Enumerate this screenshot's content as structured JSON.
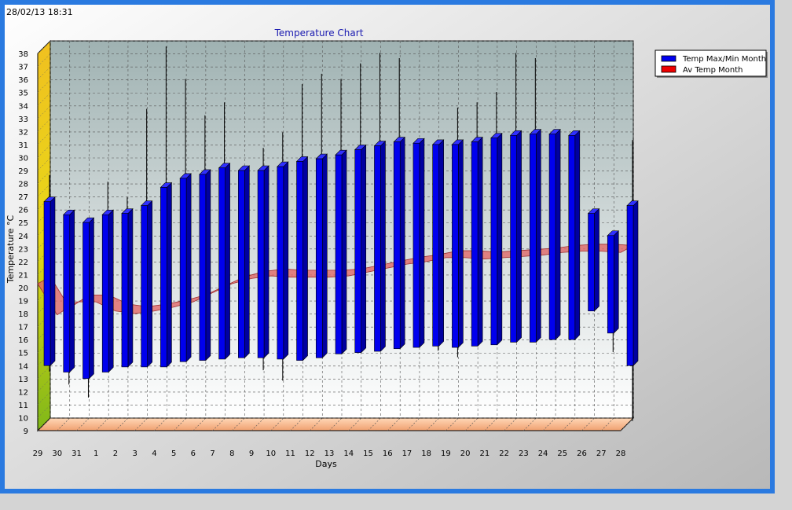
{
  "timestamp": "28/02/13 18:31",
  "chart_data": {
    "type": "candlestick-with-line",
    "title": "Temperature Chart",
    "xlabel": "Days",
    "ylabel": "Temperature °C",
    "ylim": [
      9,
      38
    ],
    "categories": [
      "29",
      "30",
      "31",
      "1",
      "2",
      "3",
      "4",
      "5",
      "6",
      "7",
      "8",
      "9",
      "10",
      "11",
      "12",
      "13",
      "14",
      "15",
      "16",
      "17",
      "18",
      "19",
      "20",
      "21",
      "22",
      "23",
      "24",
      "25",
      "26",
      "27",
      "28"
    ],
    "series": [
      {
        "name": "Temp Max/Min Month",
        "color": "#0000ee",
        "open_high": [
          26.6,
          25.6,
          25.0,
          25.6,
          25.7,
          26.3,
          27.7,
          28.4,
          28.7,
          29.2,
          29.0,
          29.0,
          29.3,
          29.7,
          29.9,
          30.2,
          30.6,
          30.9,
          31.2,
          31.1,
          31.0,
          31.0,
          31.2,
          31.5,
          31.7,
          31.8,
          31.8,
          31.7,
          25.7,
          24.0,
          26.3
        ],
        "close_low": [
          14.0,
          13.5,
          13.0,
          13.5,
          13.9,
          13.9,
          13.9,
          14.3,
          14.4,
          14.5,
          14.6,
          14.6,
          14.5,
          14.4,
          14.6,
          14.9,
          15.0,
          15.1,
          15.3,
          15.4,
          15.5,
          15.4,
          15.5,
          15.6,
          15.8,
          15.8,
          16.0,
          16.0,
          18.2,
          16.5,
          14.0
        ],
        "high": [
          28.4,
          25.6,
          25.0,
          27.9,
          26.7,
          33.5,
          38.3,
          35.8,
          33.0,
          34.0,
          29.0,
          30.5,
          31.7,
          35.4,
          36.2,
          35.8,
          37.0,
          37.8,
          37.4,
          31.1,
          31.0,
          33.6,
          34.0,
          34.8,
          37.8,
          37.4,
          31.8,
          31.7,
          25.7,
          24.0,
          31.1
        ],
        "low": [
          13.3,
          12.3,
          11.3,
          13.5,
          13.9,
          13.9,
          13.9,
          14.3,
          14.4,
          14.5,
          14.6,
          13.4,
          12.6,
          14.4,
          14.6,
          14.9,
          15.0,
          15.1,
          15.3,
          15.4,
          14.9,
          14.4,
          15.5,
          15.6,
          15.8,
          15.8,
          16.0,
          16.0,
          18.2,
          14.8,
          9.5
        ]
      },
      {
        "name": "Av Temp Month",
        "color": "#ee0000",
        "values": [
          20.3,
          17.9,
          18.9,
          18.9,
          18.2,
          18.0,
          18.2,
          18.5,
          18.9,
          19.6,
          20.3,
          20.7,
          20.9,
          20.8,
          20.8,
          20.8,
          20.9,
          21.2,
          21.5,
          21.8,
          22.0,
          22.3,
          22.3,
          22.2,
          22.3,
          22.4,
          22.5,
          22.7,
          22.8,
          22.8,
          22.7
        ]
      }
    ],
    "legend_position": "top-right",
    "grid": true
  }
}
